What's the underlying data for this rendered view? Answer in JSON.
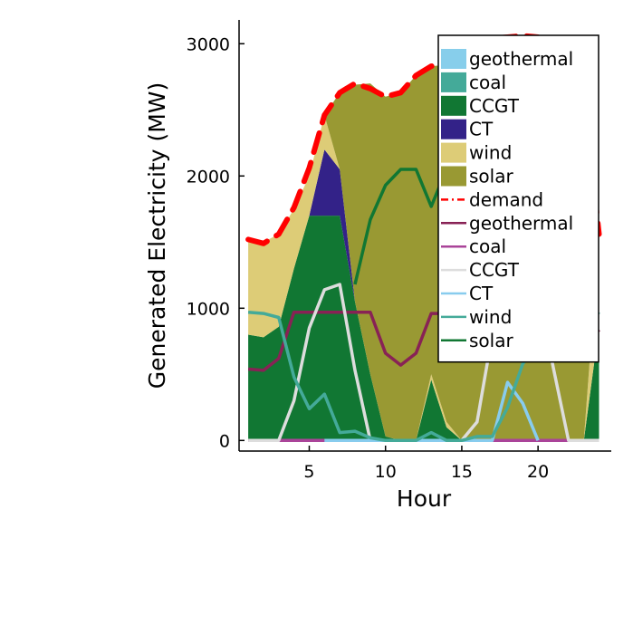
{
  "chart_data": {
    "type": "area",
    "title": "",
    "xlabel": "Hour",
    "ylabel": "Generated Electricity (MW)",
    "xlim": [
      0.4,
      24.8
    ],
    "ylim": [
      -80,
      3180
    ],
    "xticks": [
      5,
      10,
      15,
      20
    ],
    "yticks": [
      0,
      1000,
      2000,
      3000
    ],
    "x": [
      1,
      2,
      3,
      4,
      5,
      6,
      7,
      8,
      9,
      10,
      11,
      12,
      13,
      14,
      15,
      16,
      17,
      18,
      19,
      20,
      21,
      22,
      23,
      24
    ],
    "stacked_series": [
      {
        "name": "geothermal",
        "color": "#87ceeb",
        "values": [
          0,
          0,
          0,
          0,
          0,
          0,
          0,
          0,
          0,
          0,
          0,
          0,
          0,
          0,
          0,
          0,
          0,
          0,
          0,
          0,
          0,
          0,
          0,
          0
        ]
      },
      {
        "name": "coal",
        "color": "#44aa99",
        "values": [
          0,
          0,
          0,
          0,
          0,
          0,
          0,
          0,
          0,
          0,
          0,
          0,
          0,
          0,
          0,
          0,
          0,
          0,
          0,
          0,
          0,
          0,
          0,
          0
        ]
      },
      {
        "name": "CCGT",
        "color": "#117733",
        "values": [
          800,
          780,
          860,
          1300,
          1700,
          1700,
          1700,
          1050,
          500,
          30,
          0,
          0,
          460,
          100,
          0,
          0,
          0,
          0,
          0,
          0,
          0,
          0,
          0,
          860
        ]
      },
      {
        "name": "CT",
        "color": "#332288",
        "values": [
          0,
          0,
          0,
          0,
          0,
          500,
          350,
          0,
          0,
          0,
          0,
          0,
          0,
          0,
          0,
          0,
          0,
          0,
          0,
          0,
          0,
          0,
          0,
          0
        ]
      },
      {
        "name": "wind",
        "color": "#ddcc77",
        "values": [
          720,
          720,
          700,
          450,
          300,
          260,
          0,
          0,
          0,
          0,
          0,
          0,
          40,
          40,
          0,
          0,
          0,
          0,
          0,
          0,
          0,
          0,
          0,
          700
        ]
      },
      {
        "name": "solar",
        "color": "#999933",
        "values": [
          0,
          0,
          0,
          0,
          0,
          0,
          580,
          1640,
          2200,
          2570,
          2630,
          2760,
          2330,
          2700,
          2880,
          2990,
          3040,
          3050,
          3060,
          3050,
          2950,
          2850,
          2600,
          0
        ]
      }
    ],
    "line_series": [
      {
        "name": "demand",
        "color": "#ff0000",
        "dash": true,
        "values": [
          1520,
          1490,
          1560,
          1760,
          2060,
          2460,
          2630,
          2700,
          2660,
          2600,
          2630,
          2760,
          2830,
          2840,
          2880,
          2990,
          3040,
          3050,
          3060,
          3050,
          2950,
          2850,
          2600,
          1560
        ]
      },
      {
        "name": "geothermal",
        "color": "#882255",
        "values": [
          540,
          530,
          620,
          970,
          970,
          970,
          970,
          970,
          970,
          660,
          570,
          660,
          960,
          960,
          960,
          960,
          960,
          960,
          960,
          960,
          960,
          960,
          960,
          820
        ]
      },
      {
        "name": "coal",
        "color": "#aa4499",
        "values": [
          0,
          0,
          0,
          0,
          0,
          0,
          0,
          0,
          0,
          0,
          0,
          0,
          0,
          0,
          0,
          0,
          0,
          0,
          0,
          0,
          0,
          0,
          0,
          0
        ]
      },
      {
        "name": "CCGT",
        "color": "#dddddd",
        "values": [
          0,
          0,
          0,
          300,
          850,
          1140,
          1180,
          530,
          0,
          0,
          0,
          0,
          0,
          0,
          0,
          140,
          800,
          1130,
          1140,
          1140,
          550,
          0,
          0,
          0
        ]
      },
      {
        "name": "CT",
        "color": "#88ccee",
        "values": [
          null,
          null,
          null,
          null,
          null,
          0,
          0,
          0,
          0,
          0,
          0,
          0,
          0,
          0,
          0,
          0,
          0,
          440,
          280,
          0,
          null,
          null,
          null,
          null
        ]
      },
      {
        "name": "wind",
        "color": "#44aa99",
        "values": [
          970,
          960,
          930,
          480,
          240,
          350,
          60,
          70,
          20,
          0,
          0,
          0,
          60,
          0,
          0,
          30,
          30,
          250,
          580,
          720,
          720,
          730,
          850,
          970
        ]
      },
      {
        "name": "solar",
        "color": "#117733",
        "values": [
          null,
          null,
          null,
          null,
          null,
          null,
          null,
          1180,
          1670,
          1930,
          2050,
          2050,
          1770,
          2050,
          2050,
          2050,
          2050,
          2050,
          2050,
          2050,
          2050,
          2050,
          2050,
          null
        ]
      }
    ],
    "legend": {
      "placement": "top-right",
      "entries": [
        {
          "label": "geothermal",
          "kind": "patch",
          "color": "#87ceeb"
        },
        {
          "label": "coal",
          "kind": "patch",
          "color": "#44aa99"
        },
        {
          "label": "CCGT",
          "kind": "patch",
          "color": "#117733"
        },
        {
          "label": "CT",
          "kind": "patch",
          "color": "#332288"
        },
        {
          "label": "wind",
          "kind": "patch",
          "color": "#ddcc77"
        },
        {
          "label": "solar",
          "kind": "patch",
          "color": "#999933"
        },
        {
          "label": "demand",
          "kind": "dash",
          "color": "#ff0000"
        },
        {
          "label": "geothermal",
          "kind": "line",
          "color": "#882255"
        },
        {
          "label": "coal",
          "kind": "line",
          "color": "#aa4499"
        },
        {
          "label": "CCGT",
          "kind": "line",
          "color": "#dddddd"
        },
        {
          "label": "CT",
          "kind": "line",
          "color": "#88ccee"
        },
        {
          "label": "wind",
          "kind": "line",
          "color": "#44aa99"
        },
        {
          "label": "solar",
          "kind": "line",
          "color": "#117733"
        }
      ]
    },
    "grid": false
  }
}
